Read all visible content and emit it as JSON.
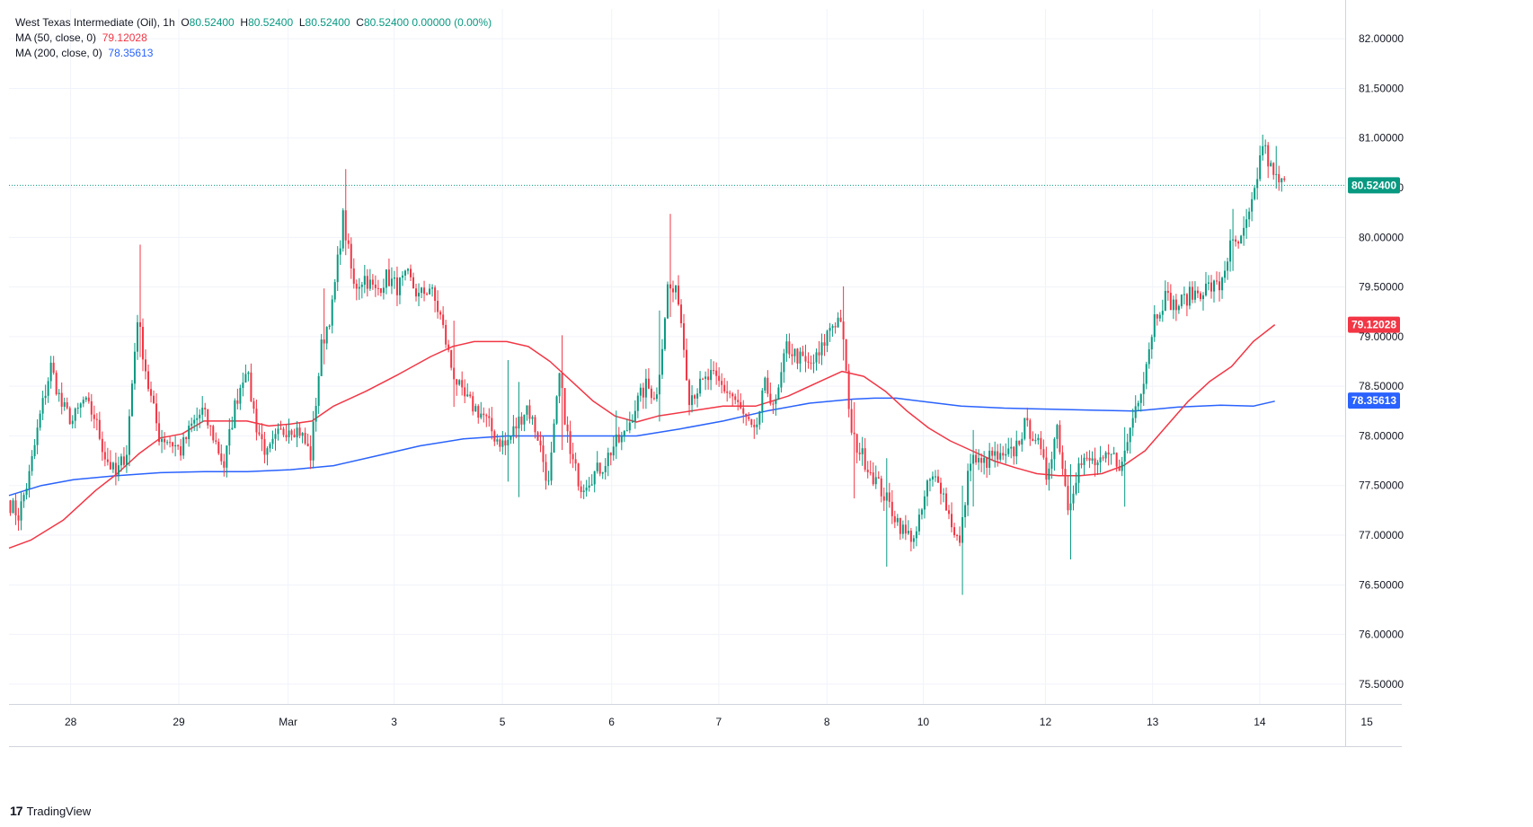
{
  "header": {
    "instrument": "West Texas Intermediate (Oil), 1h",
    "ohlc": [
      {
        "key": "O",
        "value": "80.52400"
      },
      {
        "key": "H",
        "value": "80.52400"
      },
      {
        "key": "L",
        "value": "80.52400"
      },
      {
        "key": "C",
        "value": "80.52400"
      }
    ],
    "change": "0.00000 (0.00%)",
    "ma50_label": "MA (50, close, 0)",
    "ma50_value": "79.12028",
    "ma200_label": "MA (200, close, 0)",
    "ma200_value": "78.35613"
  },
  "brand": {
    "logo": "17",
    "name": "TradingView"
  },
  "colors": {
    "up": "#089981",
    "down": "#f23645",
    "ma50": "#f23645",
    "ma200": "#2962ff",
    "grid": "#f0f3fa",
    "price_line": "#089981"
  },
  "chart_data": {
    "type": "candlestick",
    "timeframe": "1h",
    "ylim": [
      75.3,
      82.3
    ],
    "xlim": [
      0,
      123.5
    ],
    "yticks": [
      "75.50000",
      "76.00000",
      "76.50000",
      "77.00000",
      "77.50000",
      "78.00000",
      "78.50000",
      "79.00000",
      "79.50000",
      "80.00000",
      "80.50000",
      "81.00000",
      "81.50000",
      "82.00000"
    ],
    "xticks": [
      {
        "label": "28",
        "x": 5.7
      },
      {
        "label": "29",
        "x": 15.7
      },
      {
        "label": "Mar",
        "x": 25.8
      },
      {
        "label": "3",
        "x": 35.6
      },
      {
        "label": "5",
        "x": 45.6
      },
      {
        "label": "6",
        "x": 55.7
      },
      {
        "label": "7",
        "x": 65.6
      },
      {
        "label": "8",
        "x": 75.6
      },
      {
        "label": "10",
        "x": 84.5
      },
      {
        "label": "12",
        "x": 95.8
      },
      {
        "label": "13",
        "x": 105.7
      },
      {
        "label": "14",
        "x": 115.6
      },
      {
        "label": "15",
        "x": 125.5
      }
    ],
    "last_price": "80.52400",
    "ma50_last": "79.12028",
    "ma200_last": "78.35613",
    "anchors": [
      [
        0,
        77.35
      ],
      [
        1,
        77.2
      ],
      [
        2,
        77.6
      ],
      [
        3,
        78.2
      ],
      [
        4,
        78.7
      ],
      [
        5,
        78.3
      ],
      [
        6,
        78.15
      ],
      [
        7,
        78.35
      ],
      [
        8,
        78.2
      ],
      [
        9,
        77.8
      ],
      [
        10,
        77.6
      ],
      [
        11,
        77.85
      ],
      [
        12,
        79.2
      ],
      [
        13,
        78.5
      ],
      [
        14,
        78.0
      ],
      [
        15,
        77.95
      ],
      [
        16,
        77.85
      ],
      [
        17,
        78.1
      ],
      [
        18,
        78.25
      ],
      [
        19,
        78.0
      ],
      [
        20,
        77.7
      ],
      [
        21,
        78.3
      ],
      [
        22,
        78.7
      ],
      [
        23,
        78.1
      ],
      [
        24,
        77.8
      ],
      [
        25,
        78.0
      ],
      [
        26,
        78.1
      ],
      [
        27,
        78.05
      ],
      [
        28,
        77.8
      ],
      [
        29,
        78.9
      ],
      [
        30,
        79.3
      ],
      [
        31,
        80.2
      ],
      [
        32,
        79.5
      ],
      [
        33,
        79.6
      ],
      [
        34,
        79.45
      ],
      [
        35,
        79.6
      ],
      [
        36,
        79.5
      ],
      [
        37,
        79.6
      ],
      [
        38,
        79.4
      ],
      [
        39,
        79.5
      ],
      [
        40,
        79.2
      ],
      [
        41,
        78.7
      ],
      [
        42,
        78.4
      ],
      [
        43,
        78.3
      ],
      [
        44,
        78.2
      ],
      [
        45,
        78.0
      ],
      [
        46,
        77.9
      ],
      [
        47,
        78.1
      ],
      [
        48,
        78.3
      ],
      [
        49,
        78.0
      ],
      [
        50,
        77.5
      ],
      [
        51,
        78.6
      ],
      [
        52,
        77.8
      ],
      [
        53,
        77.5
      ],
      [
        54,
        77.6
      ],
      [
        55,
        77.7
      ],
      [
        56,
        77.9
      ],
      [
        57,
        78.0
      ],
      [
        58,
        78.3
      ],
      [
        59,
        78.5
      ],
      [
        60,
        78.4
      ],
      [
        61,
        79.5
      ],
      [
        62,
        79.4
      ],
      [
        63,
        78.4
      ],
      [
        64,
        78.5
      ],
      [
        65,
        78.6
      ],
      [
        66,
        78.5
      ],
      [
        67,
        78.4
      ],
      [
        68,
        78.2
      ],
      [
        69,
        78.0
      ],
      [
        70,
        78.5
      ],
      [
        71,
        78.3
      ],
      [
        72,
        78.9
      ],
      [
        73,
        78.8
      ],
      [
        74,
        78.7
      ],
      [
        75,
        78.8
      ],
      [
        76,
        79.1
      ],
      [
        77,
        79.2
      ],
      [
        78,
        78.0
      ],
      [
        79,
        77.8
      ],
      [
        80,
        77.6
      ],
      [
        81,
        77.4
      ],
      [
        82,
        77.2
      ],
      [
        83,
        77.0
      ],
      [
        84,
        77.0
      ],
      [
        85,
        77.5
      ],
      [
        86,
        77.6
      ],
      [
        87,
        77.2
      ],
      [
        88,
        76.9
      ],
      [
        89,
        77.8
      ],
      [
        90,
        77.7
      ],
      [
        91,
        77.8
      ],
      [
        92,
        77.75
      ],
      [
        93,
        77.85
      ],
      [
        94,
        78.1
      ],
      [
        95,
        78.0
      ],
      [
        96,
        77.6
      ],
      [
        97,
        78.1
      ],
      [
        98,
        77.3
      ],
      [
        99,
        77.7
      ],
      [
        100,
        77.75
      ],
      [
        101,
        77.7
      ],
      [
        102,
        77.8
      ],
      [
        103,
        77.7
      ],
      [
        104,
        78.2
      ],
      [
        105,
        78.6
      ],
      [
        106,
        79.2
      ],
      [
        107,
        79.4
      ],
      [
        108,
        79.3
      ],
      [
        109,
        79.4
      ],
      [
        110,
        79.45
      ],
      [
        111,
        79.5
      ],
      [
        112,
        79.5
      ],
      [
        113,
        79.9
      ],
      [
        114,
        79.95
      ],
      [
        115,
        80.3
      ],
      [
        116,
        80.95
      ],
      [
        117,
        80.6
      ],
      [
        118,
        80.52
      ]
    ],
    "ma50": [
      [
        0,
        76.87
      ],
      [
        2,
        76.95
      ],
      [
        5,
        77.15
      ],
      [
        8,
        77.45
      ],
      [
        10,
        77.62
      ],
      [
        12,
        77.82
      ],
      [
        14,
        77.98
      ],
      [
        16,
        78.02
      ],
      [
        18,
        78.15
      ],
      [
        20,
        78.15
      ],
      [
        22,
        78.15
      ],
      [
        24,
        78.1
      ],
      [
        26,
        78.12
      ],
      [
        28,
        78.15
      ],
      [
        30,
        78.3
      ],
      [
        33,
        78.45
      ],
      [
        36,
        78.62
      ],
      [
        39,
        78.8
      ],
      [
        41,
        78.9
      ],
      [
        43,
        78.95
      ],
      [
        46,
        78.95
      ],
      [
        48,
        78.9
      ],
      [
        50,
        78.75
      ],
      [
        52,
        78.55
      ],
      [
        54,
        78.35
      ],
      [
        56,
        78.2
      ],
      [
        58,
        78.14
      ],
      [
        60,
        78.2
      ],
      [
        63,
        78.25
      ],
      [
        66,
        78.3
      ],
      [
        69,
        78.3
      ],
      [
        72,
        78.4
      ],
      [
        75,
        78.55
      ],
      [
        77,
        78.65
      ],
      [
        79,
        78.6
      ],
      [
        81,
        78.45
      ],
      [
        83,
        78.25
      ],
      [
        85,
        78.08
      ],
      [
        87,
        77.95
      ],
      [
        89,
        77.85
      ],
      [
        91,
        77.75
      ],
      [
        93,
        77.68
      ],
      [
        95,
        77.62
      ],
      [
        97,
        77.6
      ],
      [
        99,
        77.6
      ],
      [
        101,
        77.62
      ],
      [
        103,
        77.7
      ],
      [
        105,
        77.85
      ],
      [
        107,
        78.1
      ],
      [
        109,
        78.35
      ],
      [
        111,
        78.55
      ],
      [
        113,
        78.7
      ],
      [
        115,
        78.95
      ],
      [
        117,
        79.12
      ]
    ],
    "ma200": [
      [
        0,
        77.4
      ],
      [
        3,
        77.5
      ],
      [
        6,
        77.56
      ],
      [
        10,
        77.6
      ],
      [
        14,
        77.63
      ],
      [
        18,
        77.64
      ],
      [
        22,
        77.64
      ],
      [
        26,
        77.66
      ],
      [
        30,
        77.7
      ],
      [
        34,
        77.8
      ],
      [
        38,
        77.9
      ],
      [
        42,
        77.97
      ],
      [
        46,
        78.0
      ],
      [
        50,
        78.0
      ],
      [
        54,
        78.0
      ],
      [
        58,
        78.0
      ],
      [
        62,
        78.07
      ],
      [
        66,
        78.15
      ],
      [
        70,
        78.25
      ],
      [
        74,
        78.33
      ],
      [
        78,
        78.37
      ],
      [
        80,
        78.38
      ],
      [
        82,
        78.38
      ],
      [
        85,
        78.34
      ],
      [
        88,
        78.3
      ],
      [
        92,
        78.28
      ],
      [
        96,
        78.27
      ],
      [
        100,
        78.26
      ],
      [
        104,
        78.25
      ],
      [
        108,
        78.29
      ],
      [
        112,
        78.31
      ],
      [
        115,
        78.3
      ],
      [
        117,
        78.35
      ]
    ],
    "spikes": [
      [
        12,
        0.7,
        0.3
      ],
      [
        29,
        0.5,
        0.2
      ],
      [
        31,
        0.35,
        0.1
      ],
      [
        41,
        0.4,
        0.2
      ],
      [
        46,
        0.7,
        0.3
      ],
      [
        47,
        0.3,
        0.6
      ],
      [
        51,
        0.3,
        0.6
      ],
      [
        56,
        0.2,
        0.1
      ],
      [
        60,
        0.6,
        0.2
      ],
      [
        61,
        0.6,
        0.2
      ],
      [
        77,
        0.3,
        0.2
      ],
      [
        78,
        0.3,
        0.6
      ],
      [
        81,
        0.3,
        0.6
      ],
      [
        88,
        0.2,
        0.5
      ],
      [
        89,
        0.2,
        0.4
      ],
      [
        98,
        0.3,
        0.4
      ],
      [
        103,
        0.2,
        0.4
      ],
      [
        113,
        0.2,
        0.2
      ],
      [
        117,
        0.2,
        0.1
      ]
    ]
  }
}
